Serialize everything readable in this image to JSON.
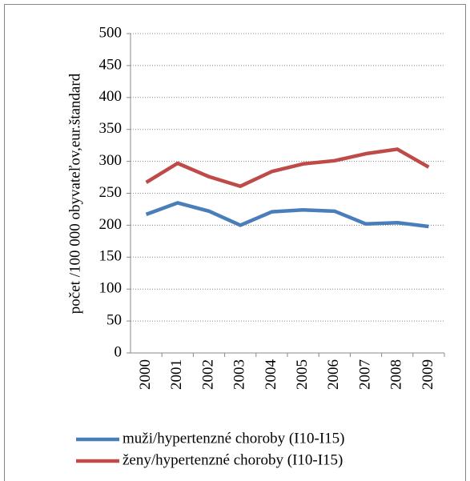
{
  "chart_data": {
    "type": "line",
    "y_label": "počet  /100 000 obyvateľov,eur.štandard",
    "categories": [
      "2000",
      "2001",
      "2002",
      "2003",
      "2004",
      "2005",
      "2006",
      "2007",
      "2008",
      "2009"
    ],
    "series": [
      {
        "name": "muži/hypertenzné choroby (I10-I15)",
        "color": "#4a7ebb",
        "values": [
          217,
          235,
          222,
          200,
          221,
          224,
          222,
          202,
          204,
          198
        ]
      },
      {
        "name": "ženy/hypertenzné choroby (I10-I15)",
        "color": "#be4b48",
        "values": [
          267,
          297,
          276,
          261,
          284,
          296,
          301,
          312,
          319,
          291
        ]
      }
    ],
    "ylim": [
      0,
      500
    ],
    "yticks": [
      0,
      50,
      100,
      150,
      200,
      250,
      300,
      350,
      400,
      450,
      500
    ],
    "grid": true
  }
}
